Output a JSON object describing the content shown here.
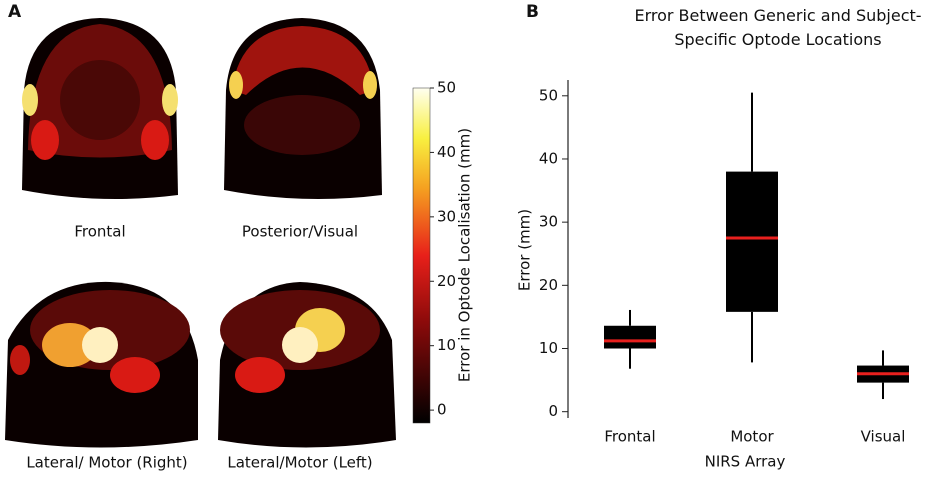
{
  "panel_a": {
    "label": "A",
    "views": [
      "Frontal",
      "Posterior/Visual",
      "Lateral/ Motor (Right)",
      "Lateral/Motor (Left)"
    ],
    "colorbar": {
      "label": "Error in Optode Localisation (mm)",
      "lim": [
        -2,
        50
      ],
      "ticks": [
        0,
        10,
        20,
        30,
        40,
        50
      ]
    }
  },
  "chart_data": {
    "type": "box",
    "label": "B",
    "title": "Error Between Generic and Subject-Specific Optode Locations",
    "categories": [
      "Frontal",
      "Motor",
      "Visual"
    ],
    "min": [
      6.8,
      7.8,
      2
    ],
    "q1": [
      10,
      15.8,
      4.6
    ],
    "median": [
      11.2,
      27.5,
      6
    ],
    "q3": [
      13.6,
      38,
      7.3
    ],
    "max": [
      16.1,
      50.5,
      9.7
    ],
    "box_color": "#000000",
    "median_color": "#e8201e",
    "xlabel": "NIRS Array",
    "ylabel": "Error (mm)",
    "ylim": [
      -1,
      52.5
    ],
    "yticks": [
      0,
      10,
      20,
      30,
      40,
      50
    ]
  }
}
